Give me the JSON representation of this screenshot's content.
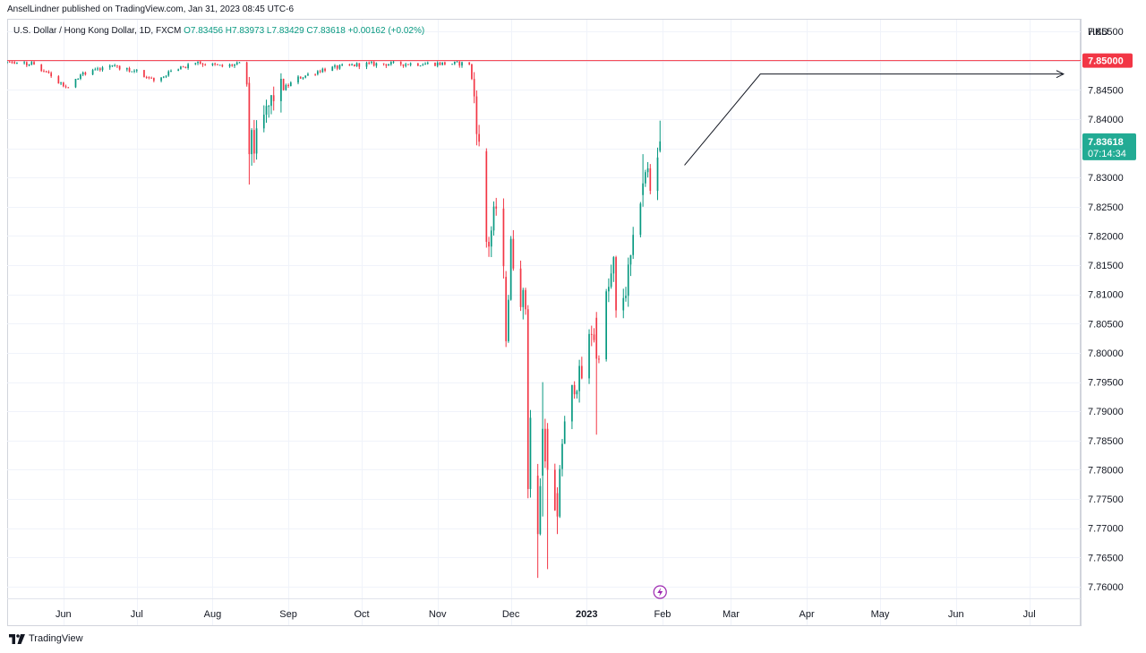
{
  "header": {
    "published": "AnselLindner published on TradingView.com, Jan 31, 2023 08:45 UTC-6"
  },
  "legend": {
    "symbol": "U.S. Dollar / Hong Kong Dollar, 1D, FXCM",
    "ohlc": "O7.83456  H7.83973  L7.83429  C7.83618  +0.00162 (+0.02%)"
  },
  "footer": {
    "brand": "TradingView",
    "logo_icon": "tradingview-logo-icon"
  },
  "colors": {
    "up": "#089981",
    "down": "#f23645",
    "grid": "#f0f3fa",
    "hline": "#f23645",
    "badge_green": "#22ab94",
    "annotation": "#131722"
  },
  "chart_data": {
    "type": "candlestick",
    "currency": "HKD",
    "ylim": [
      7.758,
      7.857
    ],
    "yticks": [
      7.855,
      7.85,
      7.845,
      7.84,
      7.835,
      7.83,
      7.825,
      7.82,
      7.815,
      7.81,
      7.805,
      7.8,
      7.795,
      7.79,
      7.785,
      7.78,
      7.775,
      7.77,
      7.765,
      7.76
    ],
    "ytick_labels": [
      "7.85500",
      "7.85000",
      "7.84500",
      "7.84000",
      "7.83500",
      "7.83000",
      "7.82500",
      "7.82000",
      "7.81500",
      "7.81000",
      "7.80500",
      "7.80000",
      "7.79500",
      "7.79000",
      "7.78500",
      "7.78000",
      "7.77500",
      "7.77000",
      "7.76500",
      "7.76000"
    ],
    "xlim": [
      "2022-05-09",
      "2023-07-22"
    ],
    "xticks": [
      {
        "date": "2022-06-01",
        "label": "Jun"
      },
      {
        "date": "2022-07-01",
        "label": "Jul"
      },
      {
        "date": "2022-08-01",
        "label": "Aug"
      },
      {
        "date": "2022-09-01",
        "label": "Sep"
      },
      {
        "date": "2022-10-01",
        "label": "Oct"
      },
      {
        "date": "2022-11-01",
        "label": "Nov"
      },
      {
        "date": "2022-12-01",
        "label": "Dec"
      },
      {
        "date": "2023-01-01",
        "label": "2023"
      },
      {
        "date": "2023-02-01",
        "label": "Feb"
      },
      {
        "date": "2023-03-01",
        "label": "Mar"
      },
      {
        "date": "2023-04-01",
        "label": "Apr"
      },
      {
        "date": "2023-05-01",
        "label": "May"
      },
      {
        "date": "2023-06-01",
        "label": "Jun"
      },
      {
        "date": "2023-07-01",
        "label": "Jul"
      }
    ],
    "hline": {
      "value": 7.85,
      "label": "7.85000"
    },
    "last_price": {
      "value": 7.83618,
      "label": "7.83618",
      "countdown": "07:14:34"
    },
    "annotation_path": [
      {
        "date": "2023-02-10",
        "value": 7.8321
      },
      {
        "date": "2023-03-13",
        "value": 7.8477
      },
      {
        "date": "2023-07-15",
        "value": 7.8477
      }
    ],
    "earnings_marker_date": "2023-01-31",
    "earnings_marker_icon": "lightning-icon",
    "anchors": [
      {
        "date": "2022-05-09",
        "value": 7.8497
      },
      {
        "date": "2022-05-20",
        "value": 7.8494
      },
      {
        "date": "2022-06-02",
        "value": 7.8455
      },
      {
        "date": "2022-06-10",
        "value": 7.848
      },
      {
        "date": "2022-06-20",
        "value": 7.8493
      },
      {
        "date": "2022-07-01",
        "value": 7.848
      },
      {
        "date": "2022-07-08",
        "value": 7.8465
      },
      {
        "date": "2022-07-15",
        "value": 7.848
      },
      {
        "date": "2022-07-25",
        "value": 7.8497
      },
      {
        "date": "2022-08-05",
        "value": 7.849
      },
      {
        "date": "2022-08-12",
        "value": 7.8494
      },
      {
        "date": "2022-08-15",
        "value": 7.846
      },
      {
        "date": "2022-08-18",
        "value": 7.835
      },
      {
        "date": "2022-08-22",
        "value": 7.84
      },
      {
        "date": "2022-08-26",
        "value": 7.844
      },
      {
        "date": "2022-09-05",
        "value": 7.847
      },
      {
        "date": "2022-09-15",
        "value": 7.8485
      },
      {
        "date": "2022-10-01",
        "value": 7.8494
      },
      {
        "date": "2022-11-01",
        "value": 7.8495
      },
      {
        "date": "2022-11-14",
        "value": 7.8495
      },
      {
        "date": "2022-11-16",
        "value": 7.844
      },
      {
        "date": "2022-11-18",
        "value": 7.835
      },
      {
        "date": "2022-11-21",
        "value": 7.83
      },
      {
        "date": "2022-11-22",
        "value": 7.819
      },
      {
        "date": "2022-11-25",
        "value": 7.825
      },
      {
        "date": "2022-11-28",
        "value": 7.813
      },
      {
        "date": "2022-11-29",
        "value": 7.802
      },
      {
        "date": "2022-12-01",
        "value": 7.818
      },
      {
        "date": "2022-12-05",
        "value": 7.81
      },
      {
        "date": "2022-12-07",
        "value": 7.808
      },
      {
        "date": "2022-12-08",
        "value": 7.778
      },
      {
        "date": "2022-12-09",
        "value": 7.789
      },
      {
        "date": "2022-12-12",
        "value": 7.769
      },
      {
        "date": "2022-12-14",
        "value": 7.787
      },
      {
        "date": "2022-12-16",
        "value": 7.78
      },
      {
        "date": "2022-12-19",
        "value": 7.772
      },
      {
        "date": "2022-12-22",
        "value": 7.785
      },
      {
        "date": "2022-12-27",
        "value": 7.795
      },
      {
        "date": "2022-12-30",
        "value": 7.796
      },
      {
        "date": "2023-01-03",
        "value": 7.804
      },
      {
        "date": "2023-01-06",
        "value": 7.801
      },
      {
        "date": "2023-01-09",
        "value": 7.809
      },
      {
        "date": "2023-01-12",
        "value": 7.815
      },
      {
        "date": "2023-01-13",
        "value": 7.806
      },
      {
        "date": "2023-01-17",
        "value": 7.811
      },
      {
        "date": "2023-01-20",
        "value": 7.818
      },
      {
        "date": "2023-01-23",
        "value": 7.827
      },
      {
        "date": "2023-01-24",
        "value": 7.829
      },
      {
        "date": "2023-01-26",
        "value": 7.831
      },
      {
        "date": "2023-01-27",
        "value": 7.828
      },
      {
        "date": "2023-01-30",
        "value": 7.8345
      },
      {
        "date": "2023-01-31",
        "value": 7.8362
      }
    ],
    "ohlc_overrides": [
      {
        "date": "2022-08-16",
        "open": 7.8462,
        "high": 7.8472,
        "low": 7.8288,
        "close": 7.834
      },
      {
        "date": "2022-11-21",
        "open": 7.8345,
        "high": 7.835,
        "low": 7.818,
        "close": 7.819
      },
      {
        "date": "2022-11-29",
        "open": 7.813,
        "high": 7.814,
        "low": 7.801,
        "close": 7.802
      },
      {
        "date": "2022-12-12",
        "open": 7.779,
        "high": 7.781,
        "low": 7.7615,
        "close": 7.769
      },
      {
        "date": "2022-12-14",
        "open": 7.779,
        "high": 7.795,
        "low": 7.772,
        "close": 7.787
      },
      {
        "date": "2022-12-16",
        "open": 7.787,
        "high": 7.788,
        "low": 7.763,
        "close": 7.78
      },
      {
        "date": "2022-12-20",
        "open": 7.776,
        "high": 7.777,
        "low": 7.769,
        "close": 7.772
      },
      {
        "date": "2023-01-05",
        "open": 7.806,
        "high": 7.807,
        "low": 7.786,
        "close": 7.799
      },
      {
        "date": "2023-01-24",
        "open": 7.827,
        "high": 7.834,
        "low": 7.825,
        "close": 7.829
      },
      {
        "date": "2023-01-31",
        "open": 7.83456,
        "high": 7.83973,
        "low": 7.83429,
        "close": 7.83618
      }
    ]
  }
}
